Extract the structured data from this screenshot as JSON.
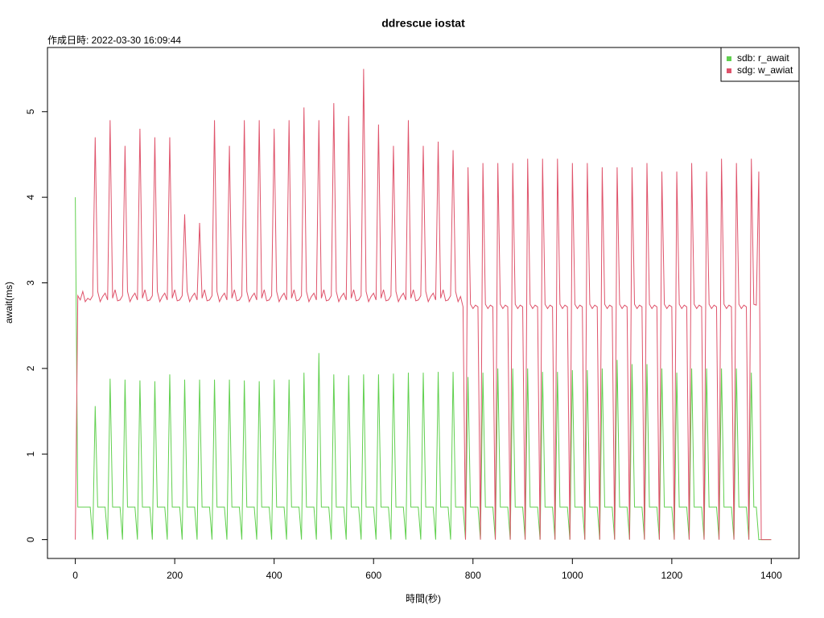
{
  "chart_data": {
    "type": "line",
    "title": "ddrescue iostat",
    "subtitle": "作成日時: 2022-03-30 16:09:44",
    "x_label": "時間(秒)",
    "y_label": "await(ms)",
    "xlim": [
      -56,
      1456
    ],
    "ylim": [
      -0.22,
      5.75
    ],
    "xticks": [
      0,
      200,
      400,
      600,
      800,
      1000,
      1200,
      1400
    ],
    "yticks": [
      0,
      1,
      2,
      3,
      4,
      5
    ],
    "legend": "top-right",
    "x": [
      0,
      5,
      10,
      15,
      20,
      25,
      30,
      35,
      40,
      45,
      50,
      55,
      60,
      65,
      70,
      75,
      80,
      85,
      90,
      95,
      100,
      105,
      110,
      115,
      120,
      125,
      130,
      135,
      140,
      145,
      150,
      155,
      160,
      165,
      170,
      175,
      180,
      185,
      190,
      195,
      200,
      205,
      210,
      215,
      220,
      225,
      230,
      235,
      240,
      245,
      250,
      255,
      260,
      265,
      270,
      275,
      280,
      285,
      290,
      295,
      300,
      305,
      310,
      315,
      320,
      325,
      330,
      335,
      340,
      345,
      350,
      355,
      360,
      365,
      370,
      375,
      380,
      385,
      390,
      395,
      400,
      405,
      410,
      415,
      420,
      425,
      430,
      435,
      440,
      445,
      450,
      455,
      460,
      465,
      470,
      475,
      480,
      485,
      490,
      495,
      500,
      505,
      510,
      515,
      520,
      525,
      530,
      535,
      540,
      545,
      550,
      555,
      560,
      565,
      570,
      575,
      580,
      585,
      590,
      595,
      600,
      605,
      610,
      615,
      620,
      625,
      630,
      635,
      640,
      645,
      650,
      655,
      660,
      665,
      670,
      675,
      680,
      685,
      690,
      695,
      700,
      705,
      710,
      715,
      720,
      725,
      730,
      735,
      740,
      745,
      750,
      755,
      760,
      765,
      770,
      775,
      780,
      785,
      790,
      795,
      800,
      805,
      810,
      815,
      820,
      825,
      830,
      835,
      840,
      845,
      850,
      855,
      860,
      865,
      870,
      875,
      880,
      885,
      890,
      895,
      900,
      905,
      910,
      915,
      920,
      925,
      930,
      935,
      940,
      945,
      950,
      955,
      960,
      965,
      970,
      975,
      980,
      985,
      990,
      995,
      1000,
      1005,
      1010,
      1015,
      1020,
      1025,
      1030,
      1035,
      1040,
      1045,
      1050,
      1055,
      1060,
      1065,
      1070,
      1075,
      1080,
      1085,
      1090,
      1095,
      1100,
      1105,
      1110,
      1115,
      1120,
      1125,
      1130,
      1135,
      1140,
      1145,
      1150,
      1155,
      1160,
      1165,
      1170,
      1175,
      1180,
      1185,
      1190,
      1195,
      1200,
      1205,
      1210,
      1215,
      1220,
      1225,
      1230,
      1235,
      1240,
      1245,
      1250,
      1255,
      1260,
      1265,
      1270,
      1275,
      1280,
      1285,
      1290,
      1295,
      1300,
      1305,
      1310,
      1315,
      1320,
      1325,
      1330,
      1335,
      1340,
      1345,
      1350,
      1355,
      1360,
      1365,
      1370,
      1375,
      1380,
      1385,
      1390,
      1395,
      1400
    ],
    "series": [
      {
        "name": "sdb: r_await",
        "color": "#61D04F",
        "values": [
          4.0,
          0.38,
          0.38,
          0.38,
          0.38,
          0.38,
          0.38,
          0,
          1.56,
          0.38,
          0.38,
          0.38,
          0.38,
          0,
          1.88,
          0.38,
          0.38,
          0.38,
          0.38,
          0,
          1.87,
          0.38,
          0.38,
          0.38,
          0.38,
          0,
          1.86,
          0.38,
          0.38,
          0.38,
          0.38,
          0,
          1.85,
          0.38,
          0.38,
          0.38,
          0.38,
          0,
          1.93,
          0.38,
          0.38,
          0.38,
          0.38,
          0,
          1.87,
          0.38,
          0.38,
          0.38,
          0.38,
          0,
          1.87,
          0.38,
          0.38,
          0.38,
          0.38,
          0,
          1.87,
          0.38,
          0.38,
          0.38,
          0.38,
          0,
          1.87,
          0.38,
          0.38,
          0.38,
          0.38,
          0,
          1.86,
          0.38,
          0.38,
          0.38,
          0.38,
          0,
          1.85,
          0.38,
          0.38,
          0.38,
          0.38,
          0,
          1.87,
          0.38,
          0.38,
          0.38,
          0.38,
          0,
          1.87,
          0.38,
          0.38,
          0.38,
          0.38,
          0,
          1.95,
          0.38,
          0.38,
          0.38,
          0.38,
          0,
          2.18,
          0.38,
          0.38,
          0.38,
          0.38,
          0,
          1.93,
          0.38,
          0.38,
          0.38,
          0.38,
          0,
          1.92,
          0.38,
          0.38,
          0.38,
          0.38,
          0,
          1.93,
          0.38,
          0.38,
          0.38,
          0.38,
          0,
          1.93,
          0.38,
          0.38,
          0.38,
          0.38,
          0,
          1.94,
          0.38,
          0.38,
          0.38,
          0.38,
          0,
          1.95,
          0.38,
          0.38,
          0.38,
          0.38,
          0,
          1.95,
          0.38,
          0.38,
          0.38,
          0.38,
          0,
          1.96,
          0.38,
          0.38,
          0.38,
          0.38,
          0,
          1.96,
          0.38,
          0.38,
          0.38,
          0.38,
          0,
          1.9,
          0.38,
          0.38,
          0.38,
          0.38,
          0,
          1.95,
          0.38,
          0.38,
          0.38,
          0.38,
          0,
          2.0,
          0.38,
          0.38,
          0.38,
          0.38,
          0,
          2.0,
          0.38,
          0.38,
          0.38,
          0.38,
          0,
          2.0,
          0.38,
          0.38,
          0.38,
          0.38,
          0,
          1.96,
          0.38,
          0.38,
          0.38,
          0.38,
          0,
          1.96,
          0.38,
          0.38,
          0.38,
          0.38,
          0,
          1.98,
          0.38,
          0.38,
          0.38,
          0.38,
          0,
          1.98,
          0.38,
          0.38,
          0.38,
          0.38,
          0,
          2.0,
          0.38,
          0.38,
          0.38,
          0.38,
          0,
          2.1,
          0.38,
          0.38,
          0.38,
          0.38,
          0,
          2.05,
          0.38,
          0.38,
          0.38,
          0.38,
          0,
          2.05,
          0.38,
          0.38,
          0.38,
          0.38,
          0,
          2.0,
          0.38,
          0.38,
          0.38,
          0.38,
          0,
          1.95,
          0.38,
          0.38,
          0.38,
          0.38,
          0,
          2.0,
          0.38,
          0.38,
          0.38,
          0.38,
          0,
          2.0,
          0.38,
          0.38,
          0.38,
          0.38,
          0,
          2.0,
          0.38,
          0.38,
          0.38,
          0.38,
          0,
          2.0,
          0.38,
          0.38,
          0.38,
          0.38,
          0,
          1.95,
          0.38,
          0.38,
          0,
          0,
          0,
          0,
          0,
          0
        ]
      },
      {
        "name": "sdg: w_awiat",
        "color": "#DF536B",
        "values": [
          0,
          2.85,
          2.8,
          2.9,
          2.78,
          2.82,
          2.8,
          2.85,
          4.7,
          2.9,
          2.78,
          2.84,
          2.88,
          2.8,
          4.9,
          2.82,
          2.92,
          2.79,
          2.8,
          2.85,
          4.6,
          2.9,
          2.78,
          2.84,
          2.88,
          2.8,
          4.8,
          2.82,
          2.92,
          2.79,
          2.8,
          2.85,
          4.7,
          2.9,
          2.78,
          2.84,
          2.88,
          2.8,
          4.7,
          2.82,
          2.92,
          2.79,
          2.8,
          2.85,
          3.8,
          2.9,
          2.78,
          2.84,
          2.88,
          2.8,
          3.7,
          2.82,
          2.92,
          2.79,
          2.8,
          2.85,
          4.9,
          2.9,
          2.78,
          2.84,
          2.88,
          2.8,
          4.6,
          2.82,
          2.92,
          2.79,
          2.8,
          2.85,
          4.9,
          2.9,
          2.78,
          2.84,
          2.88,
          2.8,
          4.9,
          2.82,
          2.92,
          2.79,
          2.8,
          2.85,
          4.8,
          2.9,
          2.78,
          2.84,
          2.88,
          2.8,
          4.9,
          2.82,
          2.92,
          2.79,
          2.8,
          2.85,
          5.05,
          2.9,
          2.78,
          2.84,
          2.88,
          2.8,
          4.9,
          2.82,
          2.92,
          2.79,
          2.8,
          2.85,
          5.1,
          2.9,
          2.78,
          2.84,
          2.88,
          2.8,
          4.95,
          2.82,
          2.92,
          2.79,
          2.8,
          2.85,
          5.5,
          2.9,
          2.78,
          2.84,
          2.88,
          2.8,
          4.85,
          2.82,
          2.92,
          2.79,
          2.8,
          2.85,
          4.6,
          2.9,
          2.78,
          2.84,
          2.88,
          2.8,
          4.9,
          2.82,
          2.92,
          2.79,
          2.8,
          2.85,
          4.6,
          2.9,
          2.78,
          2.84,
          2.88,
          2.8,
          4.65,
          2.82,
          2.92,
          2.79,
          2.8,
          2.85,
          4.55,
          2.9,
          2.78,
          2.84,
          2.72,
          0,
          4.35,
          2.75,
          2.7,
          2.74,
          2.72,
          0,
          4.4,
          2.75,
          2.7,
          2.74,
          2.72,
          0,
          4.4,
          2.75,
          2.7,
          2.74,
          2.72,
          0,
          4.4,
          2.75,
          2.7,
          2.74,
          2.72,
          0,
          4.45,
          2.75,
          2.7,
          2.74,
          2.72,
          0,
          4.45,
          2.75,
          2.7,
          2.74,
          2.72,
          0,
          4.45,
          2.75,
          2.7,
          2.74,
          2.72,
          0,
          4.4,
          2.75,
          2.7,
          2.74,
          2.72,
          0,
          4.4,
          2.75,
          2.7,
          2.74,
          2.72,
          0,
          4.35,
          2.75,
          2.7,
          2.74,
          2.72,
          0,
          4.35,
          2.75,
          2.7,
          2.74,
          2.72,
          0,
          4.35,
          2.75,
          2.7,
          2.74,
          2.72,
          0,
          4.4,
          2.75,
          2.7,
          2.74,
          2.72,
          0,
          4.3,
          2.75,
          2.7,
          2.74,
          2.72,
          0,
          4.3,
          2.75,
          2.7,
          2.74,
          2.72,
          0,
          4.4,
          2.75,
          2.7,
          2.74,
          2.72,
          0,
          4.3,
          2.75,
          2.7,
          2.74,
          2.72,
          0,
          4.45,
          2.75,
          2.7,
          2.74,
          2.72,
          0,
          4.4,
          2.75,
          2.7,
          2.74,
          2.72,
          0,
          4.45,
          2.75,
          2.74,
          4.3,
          0,
          0,
          0,
          0,
          0
        ]
      }
    ]
  }
}
